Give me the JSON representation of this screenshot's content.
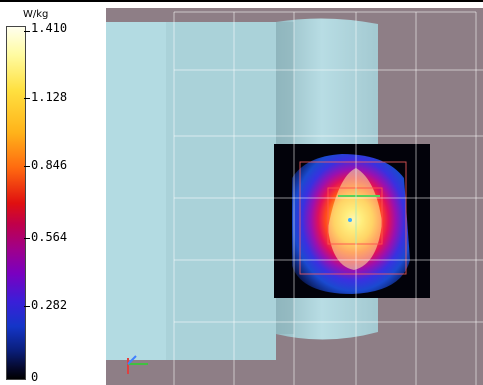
{
  "colorbar": {
    "unit": "W/kg",
    "labels": [
      "1.410",
      "1.128",
      "0.846",
      "0.564",
      "0.282",
      "0"
    ]
  },
  "viewport": {
    "background_color": "#8e7e86",
    "phantom_color": "#a8d0d8",
    "sar_peak_color": "#ffff80"
  }
}
